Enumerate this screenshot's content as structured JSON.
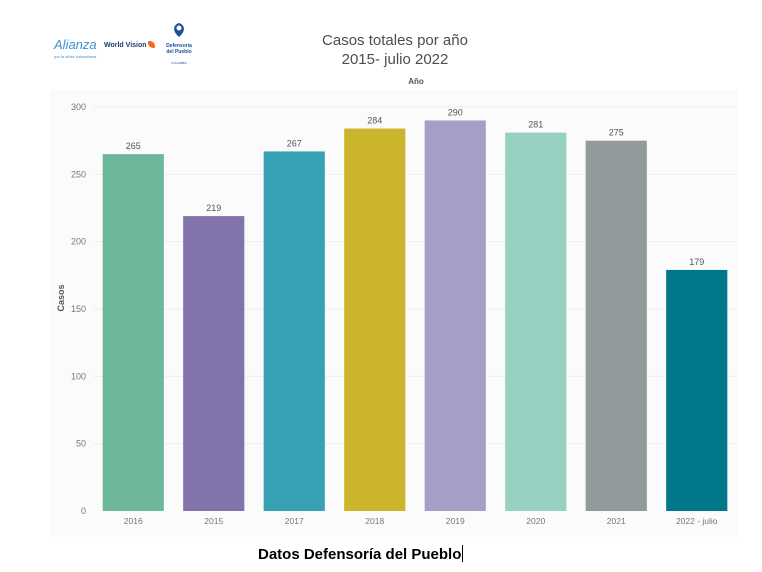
{
  "logos": {
    "alianza_text": "Alianza",
    "alianza_sub": "por la niñez colombiana",
    "worldvision_text": "World Vision",
    "defensoria_line1": "Defensoría",
    "defensoria_line2": "del Pueblo",
    "defensoria_line3": "COLOMBIA"
  },
  "caption": "Datos Defensoría del Pueblo",
  "chart_data": {
    "type": "bar",
    "title": "Casos totales por año",
    "subtitle": "2015- julio 2022",
    "header_label": "Año",
    "ylabel": "Casos",
    "xlabel": "",
    "ylim": [
      0,
      300
    ],
    "yticks": [
      0,
      50,
      100,
      150,
      200,
      250,
      300
    ],
    "grid": true,
    "legend": "none",
    "categories": [
      "2016",
      "2015",
      "2017",
      "2018",
      "2019",
      "2020",
      "2021",
      "2022 - julio"
    ],
    "values": [
      265,
      219,
      267,
      284,
      290,
      281,
      275,
      179
    ],
    "colors": [
      "#6db89a",
      "#8274aa",
      "#36a2b4",
      "#ccb42c",
      "#a59fc8",
      "#96d1c1",
      "#929a9b",
      "#00788a"
    ]
  }
}
